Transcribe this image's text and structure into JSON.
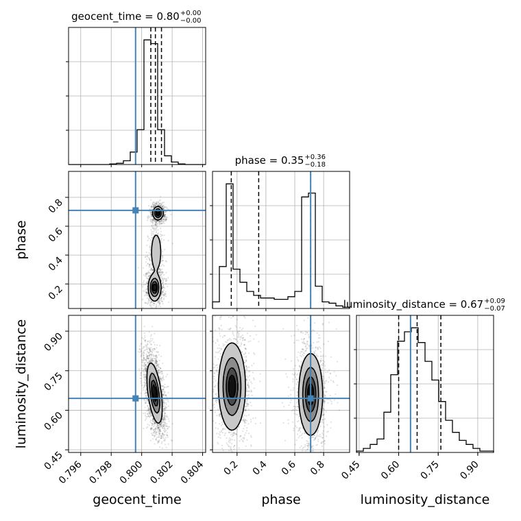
{
  "chart_data": {
    "type": "corner",
    "parameters": [
      "geocent_time",
      "phase",
      "luminosity_distance"
    ],
    "truth_color": "#4682b4",
    "titles": [
      {
        "param": "geocent_time",
        "text": "geocent_time = 0.80",
        "plus": "+0.00",
        "minus": "−0.00"
      },
      {
        "param": "phase",
        "text": "phase = 0.35",
        "plus": "+0.36",
        "minus": "−0.18"
      },
      {
        "param": "luminosity_distance",
        "text": "luminosity_distance = 0.67",
        "plus": "+0.09",
        "minus": "−0.07"
      }
    ],
    "ranges": {
      "geocent_time": [
        0.7952,
        0.8042
      ],
      "phase": [
        0.03,
        0.98
      ],
      "luminosity_distance": [
        0.44,
        0.96
      ]
    },
    "ticks": {
      "geocent_time": {
        "values": [
          0.796,
          0.798,
          0.8,
          0.802,
          0.804
        ],
        "labels": [
          "0.796",
          "0.798",
          "0.800",
          "0.802",
          "0.804"
        ]
      },
      "phase": {
        "values": [
          0.2,
          0.4,
          0.6,
          0.8
        ],
        "labels": [
          "0.2",
          "0.4",
          "0.6",
          "0.8"
        ]
      },
      "luminosity_distance": {
        "values": [
          0.45,
          0.6,
          0.75,
          0.9
        ],
        "labels": [
          "0.45",
          "0.60",
          "0.75",
          "0.90"
        ]
      }
    },
    "truths": {
      "geocent_time": 0.7996,
      "phase": 0.71,
      "luminosity_distance": 0.645
    },
    "quantiles": {
      "geocent_time": [
        0.8006,
        0.8009,
        0.8013
      ],
      "phase": [
        0.16,
        0.35,
        0.71
      ],
      "luminosity_distance": [
        0.6,
        0.67,
        0.76
      ]
    },
    "histograms": {
      "geocent_time": {
        "edges": [
          0.7952,
          0.79565,
          0.7961,
          0.79655,
          0.797,
          0.79745,
          0.7979,
          0.79835,
          0.7988,
          0.79925,
          0.7997,
          0.80015,
          0.8006,
          0.80105,
          0.8015,
          0.80195,
          0.8024,
          0.80285,
          0.8033,
          0.80375,
          0.8042
        ],
        "counts": [
          0,
          0,
          0,
          0,
          0,
          0,
          0.5,
          1,
          3,
          10,
          28,
          100,
          97,
          28,
          7,
          2,
          0.5,
          0,
          0,
          0
        ]
      },
      "phase": {
        "edges": [
          0.03,
          0.0775,
          0.125,
          0.1725,
          0.22,
          0.2675,
          0.315,
          0.3625,
          0.41,
          0.4575,
          0.505,
          0.5525,
          0.6,
          0.6475,
          0.695,
          0.7425,
          0.79,
          0.8375,
          0.885,
          0.9325,
          0.98
        ],
        "counts": [
          5,
          32,
          95,
          30,
          20,
          13,
          10,
          8,
          8,
          7,
          7,
          9,
          13,
          85,
          88,
          17,
          5,
          4,
          2,
          1
        ]
      },
      "luminosity_distance": {
        "edges": [
          0.44,
          0.466,
          0.492,
          0.518,
          0.544,
          0.57,
          0.596,
          0.622,
          0.648,
          0.674,
          0.7,
          0.726,
          0.752,
          0.778,
          0.804,
          0.83,
          0.856,
          0.882,
          0.908,
          0.934,
          0.96
        ],
        "counts": [
          1,
          3,
          6,
          10,
          30,
          58,
          83,
          90,
          93,
          82,
          68,
          54,
          38,
          24,
          15,
          9,
          6,
          3,
          1,
          1
        ]
      }
    },
    "density_2d": {
      "phase_vs_geocent_time": {
        "x": "geocent_time",
        "y": "phase",
        "modes": [
          {
            "x": 0.80107,
            "y": 0.69,
            "sx": 0.00016,
            "sy": 0.022,
            "weight": 1.0
          },
          {
            "x": 0.80085,
            "y": 0.175,
            "sx": 0.0002,
            "sy": 0.045,
            "weight": 1.0
          },
          {
            "x": 0.80095,
            "y": 0.42,
            "sx": 0.0002,
            "sy": 0.08,
            "weight": 0.35
          }
        ]
      },
      "luminosity_distance_vs_geocent_time": {
        "x": "geocent_time",
        "y": "luminosity_distance",
        "modes": [
          {
            "x": 0.80085,
            "y": 0.665,
            "sx": 0.00024,
            "sy": 0.055,
            "rho": -0.5,
            "weight": 1.0
          }
        ]
      },
      "luminosity_distance_vs_phase": {
        "x": "phase",
        "y": "luminosity_distance",
        "modes": [
          {
            "x": 0.165,
            "y": 0.69,
            "sx": 0.045,
            "sy": 0.08,
            "weight": 1.0
          },
          {
            "x": 0.71,
            "y": 0.66,
            "sx": 0.04,
            "sy": 0.075,
            "weight": 1.0
          }
        ]
      }
    },
    "contour_levels": [
      0.118,
      0.393,
      0.675,
      0.865
    ]
  }
}
